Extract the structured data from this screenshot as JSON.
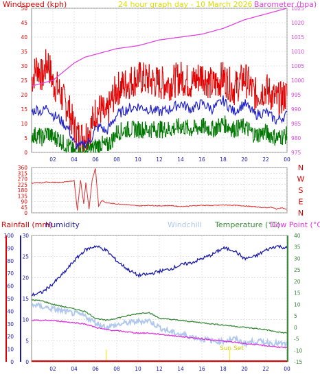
{
  "colors": {
    "wind": "#e00000",
    "gust": "#e00000",
    "avg": "#2020cc",
    "dir": "#dd3030",
    "low": "#007700",
    "baro": "#dd44dd",
    "title": "#dddd00",
    "humidity": "#1a1aaa",
    "rain": "#e00000",
    "windchill": "#b0c8ee",
    "temp": "#3a8a3a",
    "dew": "#dd33dd",
    "grid": "#c8c8c8",
    "sun": "#eeee00"
  },
  "chart_data": [
    {
      "type": "line",
      "title": "24 hour graph day - 10 March 2026",
      "left_label": "Windspeed (kph)",
      "right_label": "Barometer (hpa)",
      "x_ticks": [
        "02",
        "04",
        "06",
        "08",
        "10",
        "12",
        "14",
        "16",
        "18",
        "20",
        "22",
        "00"
      ],
      "y_left_ticks": [
        0,
        5,
        10,
        15,
        20,
        25,
        30,
        35,
        40,
        45,
        50
      ],
      "y_left_range": [
        0,
        50
      ],
      "y_right_ticks": [
        975,
        980,
        985,
        990,
        995,
        1000,
        1005,
        1010,
        1015,
        1020,
        1025
      ],
      "y_right_range": [
        975,
        1025
      ],
      "series": [
        {
          "key": "gust",
          "hours": [
            0,
            0.5,
            1,
            1.5,
            2,
            2.5,
            3,
            3.5,
            4,
            4.5,
            5,
            5.5,
            6,
            6.5,
            7,
            7.5,
            8,
            9,
            10,
            11,
            12,
            13,
            14,
            15,
            16,
            17,
            18,
            19,
            20,
            21,
            22,
            23,
            24
          ],
          "values": [
            25,
            30,
            26,
            32,
            24,
            22,
            18,
            15,
            8,
            5,
            6,
            8,
            14,
            15,
            12,
            18,
            22,
            24,
            26,
            25,
            24,
            24,
            26,
            24,
            27,
            23,
            26,
            22,
            26,
            20,
            22,
            18,
            20
          ]
        },
        {
          "key": "avg",
          "hours": [
            0,
            0.5,
            1,
            1.5,
            2,
            2.5,
            3,
            3.5,
            4,
            4.5,
            5,
            5.5,
            6,
            6.5,
            7,
            7.5,
            8,
            9,
            10,
            11,
            12,
            13,
            14,
            15,
            16,
            17,
            18,
            19,
            20,
            21,
            22,
            23,
            24
          ],
          "values": [
            14,
            15,
            14,
            16,
            13,
            12,
            10,
            8,
            3,
            2,
            3,
            4,
            8,
            9,
            7,
            10,
            13,
            15,
            16,
            15,
            14,
            15,
            17,
            15,
            17,
            15,
            18,
            14,
            17,
            13,
            14,
            11,
            13
          ]
        },
        {
          "key": "low",
          "hours": [
            0,
            0.5,
            1,
            1.5,
            2,
            2.5,
            3,
            3.5,
            4,
            4.5,
            5,
            5.5,
            6,
            6.5,
            7,
            7.5,
            8,
            9,
            10,
            11,
            12,
            13,
            14,
            15,
            16,
            17,
            18,
            19,
            20,
            21,
            22,
            23,
            24
          ],
          "values": [
            6,
            6,
            5,
            7,
            5,
            5,
            3,
            2,
            0,
            0,
            0,
            1,
            2,
            3,
            2,
            4,
            7,
            8,
            8,
            8,
            8,
            8,
            9,
            8,
            9,
            8,
            10,
            8,
            9,
            6,
            7,
            5,
            6
          ]
        },
        {
          "key": "baro",
          "axis": "right",
          "hours": [
            0,
            1,
            2,
            3,
            4,
            5,
            6,
            7,
            8,
            10,
            12,
            14,
            16,
            18,
            20,
            22,
            24
          ],
          "values": [
            998,
            999,
            1000,
            1003,
            1006,
            1008,
            1009,
            1010,
            1011,
            1012,
            1014,
            1015,
            1016,
            1018,
            1021,
            1023,
            1025
          ]
        }
      ]
    },
    {
      "type": "line",
      "x_ticks": [
        "02",
        "04",
        "06",
        "08",
        "10",
        "12",
        "14",
        "16",
        "18",
        "20",
        "22",
        "00"
      ],
      "y_ticks": [
        0,
        45,
        90,
        135,
        180,
        225,
        270,
        315,
        360
      ],
      "y_range": [
        0,
        360
      ],
      "right_labels": [
        "N",
        "W",
        "S",
        "E",
        "N"
      ],
      "series": [
        {
          "key": "dir",
          "hours": [
            0,
            0.5,
            1,
            1.5,
            2,
            2.5,
            3,
            3.5,
            4,
            4.3,
            4.6,
            4.9,
            5.1,
            5.4,
            5.7,
            6,
            6.3,
            6.6,
            7,
            8,
            9,
            10,
            11,
            12,
            13,
            14,
            15,
            16,
            17,
            18,
            19,
            20,
            21,
            22,
            22.5,
            23,
            23.5,
            24
          ],
          "values": [
            235,
            240,
            238,
            245,
            242,
            240,
            244,
            250,
            255,
            20,
            260,
            70,
            240,
            30,
            265,
            355,
            50,
            100,
            80,
            70,
            65,
            55,
            60,
            55,
            58,
            50,
            55,
            60,
            58,
            62,
            60,
            55,
            48,
            40,
            45,
            30,
            40,
            25
          ]
        }
      ]
    },
    {
      "type": "line",
      "left_label_rain": "Rainfall (mm)",
      "left_label_hum": "Humidity",
      "mid_label": "Windchill",
      "right_label_temp": "Temperature (°C)",
      "right_label_dew": "Dew Point (°C)",
      "annotation": "Sun Set",
      "x_ticks": [
        "02",
        "04",
        "06",
        "08",
        "10",
        "12",
        "14",
        "16",
        "18",
        "20",
        "22",
        "00"
      ],
      "rain_ticks": [
        0,
        10,
        20,
        30,
        40,
        50,
        60,
        70,
        80,
        90,
        100
      ],
      "hum_ticks": [
        0,
        5,
        10,
        15,
        20,
        25,
        30
      ],
      "temp_ticks": [
        -15,
        -10,
        -5,
        0,
        5,
        10,
        15,
        20,
        25,
        30,
        35,
        40
      ],
      "temp_range": [
        -15,
        40
      ],
      "hum_range": [
        0,
        30
      ],
      "series": [
        {
          "key": "humidity",
          "hours": [
            0,
            1,
            2,
            3,
            4,
            5,
            6,
            7,
            8,
            9,
            10,
            11,
            12,
            13,
            14,
            15,
            16,
            17,
            18,
            19,
            20,
            21,
            22,
            23,
            24
          ],
          "values": [
            15.8,
            16.5,
            18.5,
            21,
            24,
            26.5,
            27.5,
            26.5,
            24,
            22,
            20.5,
            20.8,
            21.5,
            22,
            23,
            23.5,
            24.5,
            25.5,
            27,
            26.5,
            24.5,
            25,
            26.5,
            27.5,
            27
          ]
        },
        {
          "key": "temp",
          "axis": "right",
          "hours": [
            0,
            1,
            2,
            3,
            4,
            5,
            6,
            7,
            8,
            9,
            10,
            11,
            12,
            13,
            14,
            15,
            16,
            17,
            18,
            19,
            20,
            21,
            22,
            23,
            24
          ],
          "values": [
            12,
            11.5,
            10,
            9,
            8,
            7,
            4,
            3,
            4,
            5,
            6,
            6.5,
            4,
            3.5,
            3,
            2.5,
            2,
            1.5,
            1,
            0.5,
            0,
            -0.5,
            -1,
            -2,
            -2.5
          ]
        },
        {
          "key": "windchill",
          "axis": "right",
          "hours": [
            0,
            1,
            2,
            3,
            4,
            5,
            6,
            7,
            8,
            9,
            10,
            11,
            12,
            13,
            14,
            15,
            16,
            17,
            18,
            19,
            20,
            21,
            22,
            23,
            24
          ],
          "values": [
            10,
            9,
            8,
            7,
            6,
            5,
            2,
            0,
            1,
            2,
            2.5,
            3,
            0,
            -2,
            -3,
            -4,
            -5,
            -6,
            -6,
            -5,
            -7,
            -6,
            -6.5,
            -7,
            -7.5
          ]
        },
        {
          "key": "dew",
          "axis": "right",
          "hours": [
            0,
            1,
            2,
            3,
            4,
            5,
            6,
            7,
            8,
            9,
            10,
            11,
            12,
            13,
            14,
            15,
            16,
            17,
            18,
            19,
            20,
            21,
            22,
            23,
            24
          ],
          "values": [
            3,
            3,
            3,
            2.5,
            2,
            1.5,
            0,
            -1,
            -1.5,
            -2,
            -2.5,
            -2.5,
            -3,
            -3.5,
            -4,
            -4.5,
            -5,
            -5.5,
            -6,
            -6.5,
            -7,
            -7.5,
            -8,
            -8.5,
            -9
          ]
        },
        {
          "key": "rain",
          "hours": [
            0,
            24
          ],
          "values": [
            0,
            0
          ]
        }
      ],
      "sun_set_hour": 18.6,
      "marker_hour": 7
    }
  ]
}
